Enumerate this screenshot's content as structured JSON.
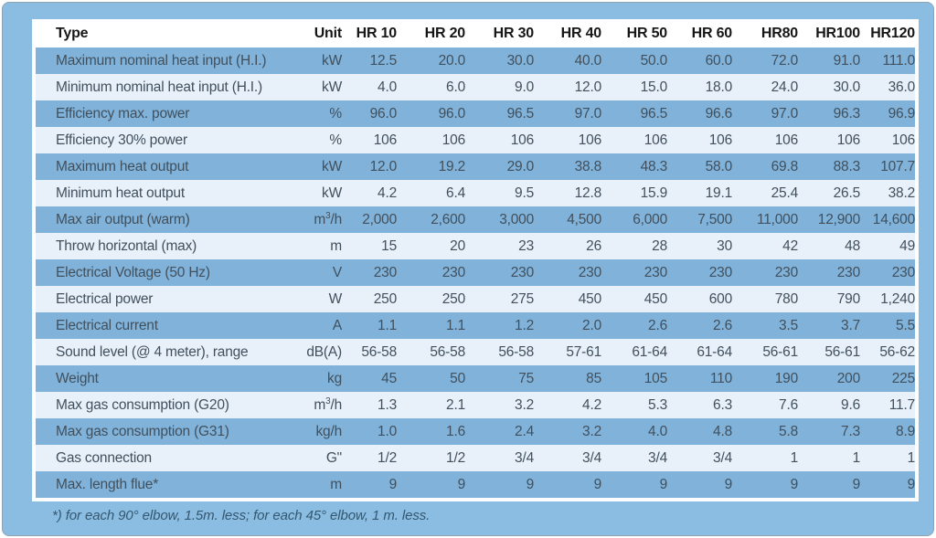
{
  "colors": {
    "panel_bg": "#8bbde2",
    "panel_border": "#8fa3b2",
    "table_frame": "#fcfdfe",
    "header_bg": "#ffffff",
    "row_dark": "#80b2da",
    "row_light": "#e8f0fa",
    "header_text": "#161616",
    "cell_text": "#41505c",
    "footnote_text": "#34576f"
  },
  "table": {
    "columns": [
      "Type",
      "Unit",
      "HR 10",
      "HR 20",
      "HR 30",
      "HR 40",
      "HR 50",
      "HR 60",
      "HR80",
      "HR100",
      "HR120"
    ],
    "rows": [
      {
        "label": "Maximum nominal heat input (H.I.)",
        "unit": "kW",
        "values": [
          "12.5",
          "20.0",
          "30.0",
          "40.0",
          "50.0",
          "60.0",
          "72.0",
          "91.0",
          "111.0"
        ]
      },
      {
        "label": "Minimum nominal heat input (H.I.)",
        "unit": "kW",
        "values": [
          "4.0",
          "6.0",
          "9.0",
          "12.0",
          "15.0",
          "18.0",
          "24.0",
          "30.0",
          "36.0"
        ]
      },
      {
        "label": "Efficiency max. power",
        "unit": "%",
        "values": [
          "96.0",
          "96.0",
          "96.5",
          "97.0",
          "96.5",
          "96.6",
          "97.0",
          "96.3",
          "96.9"
        ]
      },
      {
        "label": "Efficiency 30% power",
        "unit": "%",
        "values": [
          "106",
          "106",
          "106",
          "106",
          "106",
          "106",
          "106",
          "106",
          "106"
        ]
      },
      {
        "label": "Maximum heat output",
        "unit": "kW",
        "values": [
          "12.0",
          "19.2",
          "29.0",
          "38.8",
          "48.3",
          "58.0",
          "69.8",
          "88.3",
          "107.7"
        ]
      },
      {
        "label": "Minimum heat output",
        "unit": "kW",
        "values": [
          "4.2",
          "6.4",
          "9.5",
          "12.8",
          "15.9",
          "19.1",
          "25.4",
          "26.5",
          "38.2"
        ]
      },
      {
        "label": "Max air output (warm)",
        "unit": "m³/h",
        "values": [
          "2,000",
          "2,600",
          "3,000",
          "4,500",
          "6,000",
          "7,500",
          "11,000",
          "12,900",
          "14,600"
        ]
      },
      {
        "label": "Throw horizontal (max)",
        "unit": "m",
        "values": [
          "15",
          "20",
          "23",
          "26",
          "28",
          "30",
          "42",
          "48",
          "49"
        ]
      },
      {
        "label": "Electrical Voltage (50 Hz)",
        "unit": "V",
        "values": [
          "230",
          "230",
          "230",
          "230",
          "230",
          "230",
          "230",
          "230",
          "230"
        ]
      },
      {
        "label": "Electrical power",
        "unit": "W",
        "values": [
          "250",
          "250",
          "275",
          "450",
          "450",
          "600",
          "780",
          "790",
          "1,240"
        ]
      },
      {
        "label": "Electrical current",
        "unit": "A",
        "values": [
          "1.1",
          "1.1",
          "1.2",
          "2.0",
          "2.6",
          "2.6",
          "3.5",
          "3.7",
          "5.5"
        ]
      },
      {
        "label": "Sound level (@ 4 meter), range",
        "unit": "dB(A)",
        "values": [
          "56-58",
          "56-58",
          "56-58",
          "57-61",
          "61-64",
          "61-64",
          "56-61",
          "56-61",
          "56-62"
        ]
      },
      {
        "label": "Weight",
        "unit": "kg",
        "values": [
          "45",
          "50",
          "75",
          "85",
          "105",
          "110",
          "190",
          "200",
          "225"
        ]
      },
      {
        "label": "Max gas consumption (G20)",
        "unit": "m³/h",
        "values": [
          "1.3",
          "2.1",
          "3.2",
          "4.2",
          "5.3",
          "6.3",
          "7.6",
          "9.6",
          "11.7"
        ]
      },
      {
        "label": "Max gas consumption (G31)",
        "unit": "kg/h",
        "values": [
          "1.0",
          "1.6",
          "2.4",
          "3.2",
          "4.0",
          "4.8",
          "5.8",
          "7.3",
          "8.9"
        ]
      },
      {
        "label": "Gas connection",
        "unit": "G\"",
        "values": [
          "1/2",
          "1/2",
          "3/4",
          "3/4",
          "3/4",
          "3/4",
          "1",
          "1",
          "1"
        ]
      },
      {
        "label": "Max. length flue*",
        "unit": "m",
        "values": [
          "9",
          "9",
          "9",
          "9",
          "9",
          "9",
          "9",
          "9",
          "9"
        ]
      }
    ]
  },
  "footnote": "*) for each 90° elbow, 1.5m. less; for each 45° elbow, 1 m. less."
}
